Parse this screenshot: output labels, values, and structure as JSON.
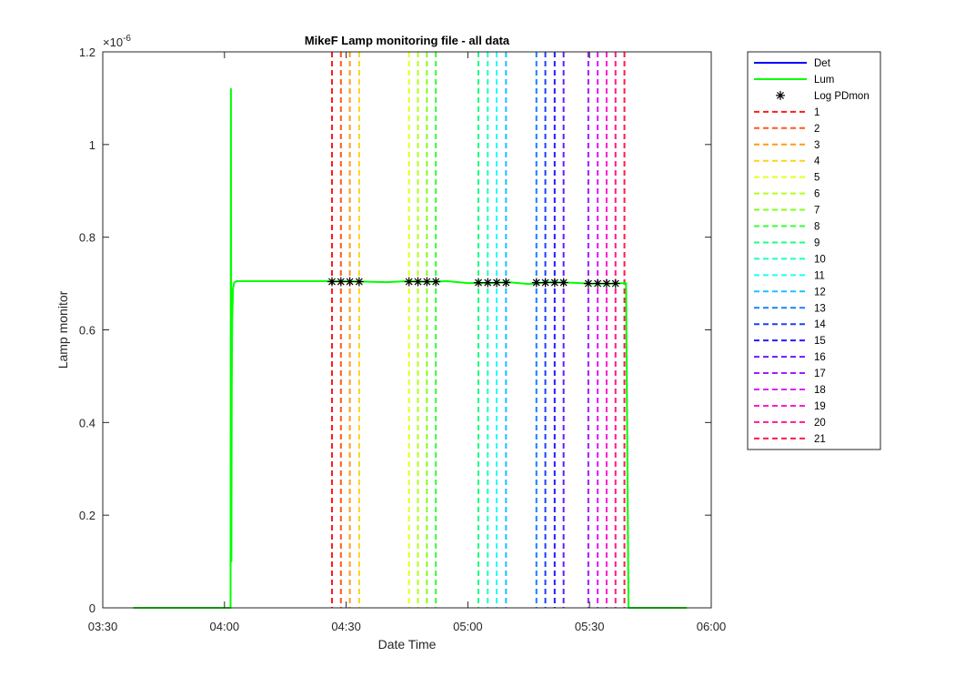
{
  "chart_data": {
    "type": "line",
    "title": "MikeF Lamp monitoring file - all data",
    "xlabel": "Date Time",
    "ylabel": "Lamp monitor",
    "y_exponent_label": "×10",
    "y_exponent_power": "-6",
    "xlim_minutes": [
      210,
      360
    ],
    "ylim": [
      0,
      1.2
    ],
    "x_ticks": [
      {
        "value": 210,
        "label": "03:30"
      },
      {
        "value": 240,
        "label": "04:00"
      },
      {
        "value": 270,
        "label": "04:30"
      },
      {
        "value": 300,
        "label": "05:00"
      },
      {
        "value": 330,
        "label": "05:30"
      },
      {
        "value": 360,
        "label": "06:00"
      }
    ],
    "y_ticks": [
      {
        "value": 0,
        "label": "0"
      },
      {
        "value": 0.2,
        "label": "0.2"
      },
      {
        "value": 0.4,
        "label": "0.4"
      },
      {
        "value": 0.6,
        "label": "0.6"
      },
      {
        "value": 0.8,
        "label": "0.8"
      },
      {
        "value": 1.0,
        "label": "1"
      },
      {
        "value": 1.2,
        "label": "1.2"
      }
    ],
    "series": [
      {
        "name": "Det",
        "color": "#0000ff",
        "style": "line",
        "x": [],
        "y": []
      },
      {
        "name": "Lum",
        "color": "#00ff00",
        "style": "line",
        "x": [
          217.5,
          240.0,
          241.5,
          241.6,
          241.7,
          241.8,
          241.9,
          242.1,
          242.4,
          243.0,
          260.0,
          270.0,
          280.0,
          285.0,
          290.0,
          295.0,
          300.0,
          305.0,
          310.0,
          315.0,
          320.0,
          325.0,
          330.0,
          335.0,
          339.0,
          339.3,
          339.6,
          350.0,
          354.0
        ],
        "y": [
          0,
          0,
          0,
          1.12,
          0.1,
          0.48,
          0.62,
          0.69,
          0.702,
          0.705,
          0.705,
          0.705,
          0.703,
          0.705,
          0.704,
          0.705,
          0.701,
          0.701,
          0.703,
          0.699,
          0.703,
          0.702,
          0.7,
          0.7,
          0.701,
          0.35,
          0,
          0,
          0
        ]
      },
      {
        "name": "Log PDmon",
        "color": "#000000",
        "style": "marker",
        "x": [
          266.5,
          268.7,
          270.9,
          273.2,
          285.5,
          287.7,
          289.9,
          292.1,
          302.6,
          304.9,
          307.1,
          309.4,
          316.9,
          319.1,
          321.4,
          323.6,
          329.7,
          332.0,
          334.2,
          336.4
        ],
        "y": [
          0.704,
          0.704,
          0.704,
          0.704,
          0.704,
          0.704,
          0.704,
          0.704,
          0.702,
          0.702,
          0.702,
          0.702,
          0.702,
          0.702,
          0.702,
          0.702,
          0.7,
          0.7,
          0.7,
          0.7
        ]
      }
    ],
    "markers": [
      {
        "name": "1",
        "x": 266.5,
        "color": "#ff1a1a"
      },
      {
        "name": "2",
        "x": 268.7,
        "color": "#ff5a1a"
      },
      {
        "name": "3",
        "x": 270.9,
        "color": "#ff9a1a"
      },
      {
        "name": "4",
        "x": 273.2,
        "color": "#ffd21a"
      },
      {
        "name": "5",
        "x": 285.5,
        "color": "#e6ff1a"
      },
      {
        "name": "6",
        "x": 287.7,
        "color": "#b3ff1a"
      },
      {
        "name": "7",
        "x": 289.9,
        "color": "#80ff1a"
      },
      {
        "name": "8",
        "x": 292.1,
        "color": "#33ff33"
      },
      {
        "name": "9",
        "x": 302.6,
        "color": "#1aff80"
      },
      {
        "name": "10",
        "x": 304.9,
        "color": "#1affc0"
      },
      {
        "name": "11",
        "x": 307.1,
        "color": "#1affff"
      },
      {
        "name": "12",
        "x": 309.4,
        "color": "#1ac0ff"
      },
      {
        "name": "13",
        "x": 316.9,
        "color": "#1a80ff"
      },
      {
        "name": "14",
        "x": 319.1,
        "color": "#1a40ff"
      },
      {
        "name": "15",
        "x": 321.4,
        "color": "#2a1aff"
      },
      {
        "name": "16",
        "x": 323.6,
        "color": "#6a1aff"
      },
      {
        "name": "17",
        "x": 329.7,
        "color": "#a31aff"
      },
      {
        "name": "18",
        "x": 332.0,
        "color": "#e01aff"
      },
      {
        "name": "19",
        "x": 334.2,
        "color": "#ff1ad2"
      },
      {
        "name": "20",
        "x": 336.4,
        "color": "#ff1a8c"
      },
      {
        "name": "21",
        "x": 338.6,
        "color": "#ff1a4d"
      }
    ],
    "legend_position": "outside-top-right",
    "grid": false
  }
}
